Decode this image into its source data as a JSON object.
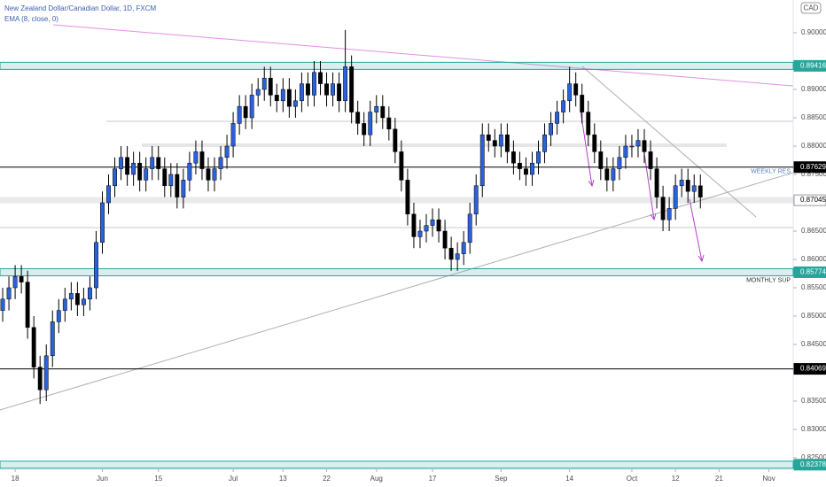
{
  "chart_data": {
    "type": "candlestick",
    "title": "New Zealand Dollar/Canadian Dollar, 1D, FXCM",
    "indicator": "EMA (8, close, 0)",
    "currency": "CAD",
    "up_color": "#2b62d9",
    "down_color": "#000000",
    "grid": false,
    "xlim": [
      -0.43,
      126.9
    ],
    "xticks": [
      {
        "value": 2,
        "label": "18"
      },
      {
        "value": 16,
        "label": "Jun"
      },
      {
        "value": 25,
        "label": "15"
      },
      {
        "value": 37,
        "label": "Jul"
      },
      {
        "value": 45,
        "label": "13"
      },
      {
        "value": 52,
        "label": "22"
      },
      {
        "value": 60,
        "label": "Aug"
      },
      {
        "value": 69,
        "label": "17"
      },
      {
        "value": 80,
        "label": "Sep"
      },
      {
        "value": 91,
        "label": "14"
      },
      {
        "value": 101,
        "label": "Oct"
      },
      {
        "value": 108,
        "label": "12"
      },
      {
        "value": 115,
        "label": "21"
      },
      {
        "value": 123,
        "label": "Nov"
      }
    ],
    "ylim": [
      0.82297,
      0.90578
    ],
    "yticks": [
      {
        "value": 0.825,
        "label": "0.82500"
      },
      {
        "value": 0.83,
        "label": "0.83000"
      },
      {
        "value": 0.835,
        "label": "0.83500"
      },
      {
        "value": 0.845,
        "label": "0.84500"
      },
      {
        "value": 0.85,
        "label": "0.85000"
      },
      {
        "value": 0.855,
        "label": "0.85500"
      },
      {
        "value": 0.86,
        "label": "0.86000"
      },
      {
        "value": 0.865,
        "label": "0.86500"
      },
      {
        "value": 0.875,
        "label": "0.87500"
      },
      {
        "value": 0.88,
        "label": "0.88000"
      },
      {
        "value": 0.885,
        "label": "0.88500"
      },
      {
        "value": 0.89,
        "label": "0.89000"
      },
      {
        "value": 0.9,
        "label": "0.90000"
      }
    ],
    "levels": [
      {
        "value": 0.89416,
        "style": "zone",
        "color": "#26a69a"
      },
      {
        "value": 0.87629,
        "style": "line",
        "color": "#000000",
        "note": "WEEKLY RES"
      },
      {
        "value": 0.87045,
        "style": "band",
        "color": "#9598a1"
      },
      {
        "value": 0.85774,
        "style": "zone",
        "color": "#26a69a",
        "note": "MONTHLY SUP"
      },
      {
        "value": 0.84069,
        "style": "line",
        "color": "#000000"
      },
      {
        "value": 0.82378,
        "style": "zone",
        "color": "#26a69a"
      }
    ],
    "open": [
      0.851,
      0.853,
      0.855,
      0.857,
      0.856,
      0.848,
      0.841,
      0.837,
      0.843,
      0.849,
      0.851,
      0.853,
      0.854,
      0.852,
      0.853,
      0.855,
      0.863,
      0.87,
      0.873,
      0.876,
      0.878,
      0.875,
      0.877,
      0.874,
      0.876,
      0.878,
      0.876,
      0.873,
      0.875,
      0.871,
      0.874,
      0.877,
      0.879,
      0.876,
      0.874,
      0.876,
      0.878,
      0.88,
      0.884,
      0.887,
      0.885,
      0.889,
      0.89,
      0.892,
      0.889,
      0.888,
      0.89,
      0.887,
      0.888,
      0.891,
      0.889,
      0.893,
      0.891,
      0.889,
      0.891,
      0.888,
      0.894,
      0.886,
      0.884,
      0.882,
      0.886,
      0.887,
      0.885,
      0.883,
      0.879,
      0.874,
      0.868,
      0.864,
      0.865,
      0.866,
      0.867,
      0.865,
      0.862,
      0.86,
      0.861,
      0.863,
      0.868,
      0.873,
      0.882,
      0.881,
      0.88,
      0.882,
      0.879,
      0.877,
      0.876,
      0.875,
      0.877,
      0.879,
      0.882,
      0.884,
      0.886,
      0.888,
      0.891,
      0.889,
      0.886,
      0.882,
      0.879,
      0.876,
      0.874,
      0.876,
      0.878,
      0.88,
      0.88,
      0.881,
      0.879,
      0.876,
      0.871,
      0.867,
      0.869,
      0.873,
      0.874,
      0.872,
      0.873
    ],
    "high": [
      0.855,
      0.857,
      0.859,
      0.859,
      0.858,
      0.85,
      0.843,
      0.845,
      0.851,
      0.853,
      0.855,
      0.856,
      0.856,
      0.855,
      0.857,
      0.865,
      0.872,
      0.875,
      0.878,
      0.88,
      0.88,
      0.879,
      0.879,
      0.878,
      0.88,
      0.88,
      0.878,
      0.877,
      0.877,
      0.876,
      0.879,
      0.881,
      0.881,
      0.878,
      0.878,
      0.88,
      0.882,
      0.886,
      0.889,
      0.889,
      0.891,
      0.892,
      0.894,
      0.894,
      0.891,
      0.892,
      0.892,
      0.89,
      0.893,
      0.893,
      0.895,
      0.895,
      0.893,
      0.893,
      0.893,
      0.9005,
      0.896,
      0.888,
      0.886,
      0.888,
      0.889,
      0.889,
      0.887,
      0.885,
      0.881,
      0.876,
      0.87,
      0.867,
      0.868,
      0.869,
      0.869,
      0.867,
      0.864,
      0.863,
      0.865,
      0.87,
      0.875,
      0.884,
      0.884,
      0.883,
      0.884,
      0.884,
      0.881,
      0.879,
      0.878,
      0.879,
      0.881,
      0.884,
      0.886,
      0.888,
      0.89,
      0.894,
      0.893,
      0.891,
      0.888,
      0.884,
      0.881,
      0.878,
      0.878,
      0.88,
      0.882,
      0.882,
      0.883,
      0.883,
      0.881,
      0.878,
      0.873,
      0.871,
      0.875,
      0.876,
      0.876,
      0.875,
      0.875
    ],
    "low": [
      0.849,
      0.851,
      0.853,
      0.854,
      0.846,
      0.839,
      0.8345,
      0.835,
      0.841,
      0.847,
      0.849,
      0.851,
      0.85,
      0.85,
      0.851,
      0.853,
      0.861,
      0.868,
      0.871,
      0.874,
      0.873,
      0.873,
      0.872,
      0.872,
      0.874,
      0.874,
      0.871,
      0.871,
      0.869,
      0.869,
      0.872,
      0.875,
      0.874,
      0.872,
      0.872,
      0.874,
      0.876,
      0.878,
      0.882,
      0.883,
      0.883,
      0.887,
      0.888,
      0.887,
      0.886,
      0.886,
      0.885,
      0.885,
      0.886,
      0.887,
      0.887,
      0.889,
      0.887,
      0.887,
      0.886,
      0.886,
      0.884,
      0.882,
      0.88,
      0.88,
      0.884,
      0.883,
      0.881,
      0.877,
      0.872,
      0.866,
      0.862,
      0.862,
      0.863,
      0.864,
      0.863,
      0.86,
      0.858,
      0.858,
      0.859,
      0.861,
      0.866,
      0.871,
      0.879,
      0.878,
      0.878,
      0.877,
      0.875,
      0.874,
      0.873,
      0.873,
      0.875,
      0.877,
      0.88,
      0.882,
      0.884,
      0.886,
      0.887,
      0.884,
      0.88,
      0.877,
      0.874,
      0.872,
      0.872,
      0.874,
      0.876,
      0.878,
      0.878,
      0.877,
      0.874,
      0.869,
      0.865,
      0.865,
      0.867,
      0.871,
      0.87,
      0.87,
      0.869
    ],
    "close": [
      0.853,
      0.855,
      0.857,
      0.856,
      0.848,
      0.841,
      0.837,
      0.843,
      0.849,
      0.851,
      0.853,
      0.854,
      0.852,
      0.853,
      0.855,
      0.863,
      0.87,
      0.873,
      0.876,
      0.878,
      0.875,
      0.877,
      0.874,
      0.876,
      0.878,
      0.876,
      0.873,
      0.875,
      0.871,
      0.874,
      0.877,
      0.879,
      0.876,
      0.874,
      0.876,
      0.878,
      0.88,
      0.884,
      0.887,
      0.885,
      0.889,
      0.89,
      0.892,
      0.889,
      0.888,
      0.89,
      0.887,
      0.888,
      0.891,
      0.889,
      0.893,
      0.891,
      0.889,
      0.891,
      0.888,
      0.894,
      0.886,
      0.884,
      0.882,
      0.886,
      0.887,
      0.885,
      0.883,
      0.879,
      0.874,
      0.868,
      0.864,
      0.865,
      0.866,
      0.867,
      0.865,
      0.862,
      0.86,
      0.861,
      0.863,
      0.868,
      0.873,
      0.882,
      0.881,
      0.88,
      0.882,
      0.879,
      0.877,
      0.876,
      0.875,
      0.877,
      0.879,
      0.882,
      0.884,
      0.886,
      0.888,
      0.891,
      0.889,
      0.886,
      0.882,
      0.879,
      0.876,
      0.874,
      0.876,
      0.878,
      0.88,
      0.88,
      0.881,
      0.879,
      0.876,
      0.871,
      0.867,
      0.869,
      0.873,
      0.874,
      0.872,
      0.873,
      0.871
    ]
  }
}
